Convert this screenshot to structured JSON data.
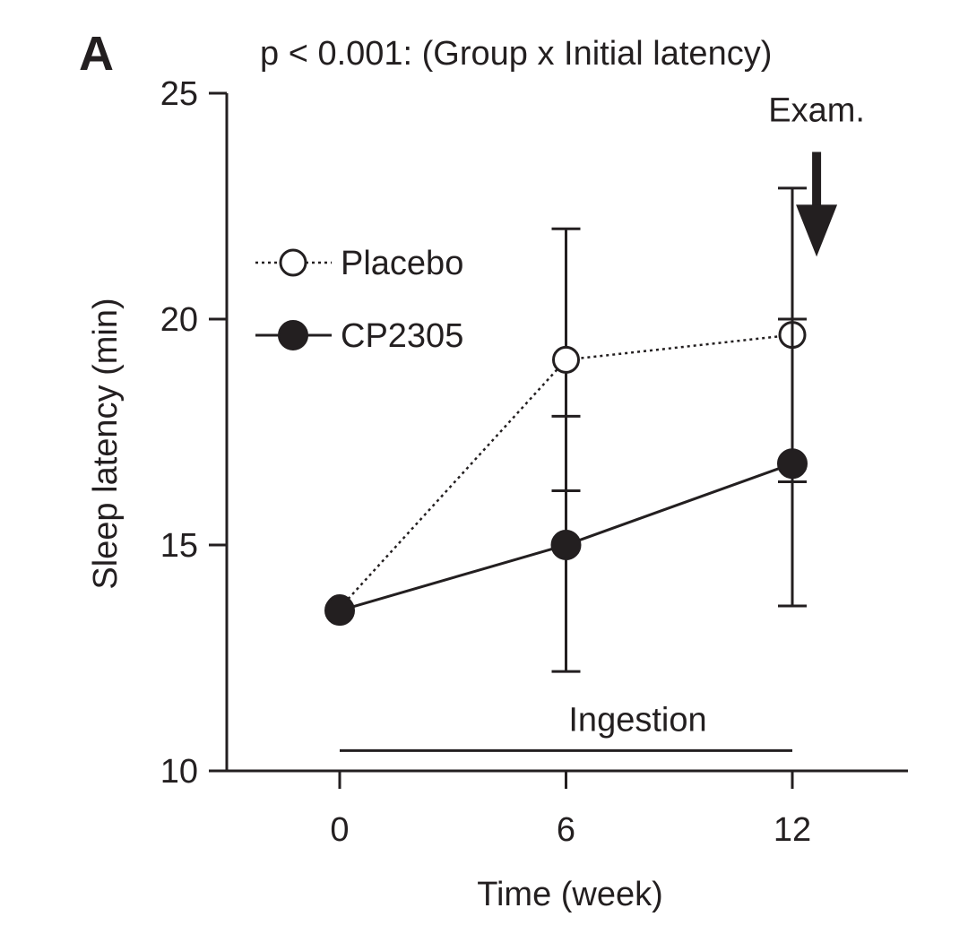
{
  "panel_label": "A",
  "chart_data": {
    "type": "line",
    "title": "p < 0.001:  (Group x Initial latency)",
    "xlabel": "Time (week)",
    "ylabel": "Sleep latency (min)",
    "xlim": [
      -2.4,
      12.6
    ],
    "ylim": [
      10,
      25
    ],
    "x_ticks": [
      0,
      6,
      12
    ],
    "y_ticks": [
      10,
      15,
      20,
      25
    ],
    "grid": false,
    "legend_position": "upper-left",
    "series": [
      {
        "name": "Placebo",
        "marker": "open-circle",
        "line": "dotted",
        "x": [
          0,
          6,
          12
        ],
        "y": [
          13.6,
          19.1,
          19.65
        ],
        "err_low": [
          null,
          16.2,
          16.4
        ],
        "err_high": [
          null,
          22.0,
          20.0
        ]
      },
      {
        "name": "CP2305",
        "marker": "filled-circle",
        "line": "solid",
        "x": [
          0,
          6,
          12
        ],
        "y": [
          13.55,
          15.0,
          16.8
        ],
        "err_low": [
          null,
          12.2,
          13.65
        ],
        "err_high": [
          null,
          17.85,
          22.9
        ]
      }
    ],
    "annotations": [
      {
        "text": "Ingestion",
        "type": "bar",
        "x_start": 0,
        "x_end": 12,
        "y": 10.45
      },
      {
        "text": "Exam.",
        "type": "arrow",
        "x": 13.0,
        "y_start": 23.7,
        "y_end": 21.5
      }
    ]
  },
  "colors": {
    "ink": "#231f20",
    "background": "#ffffff"
  }
}
